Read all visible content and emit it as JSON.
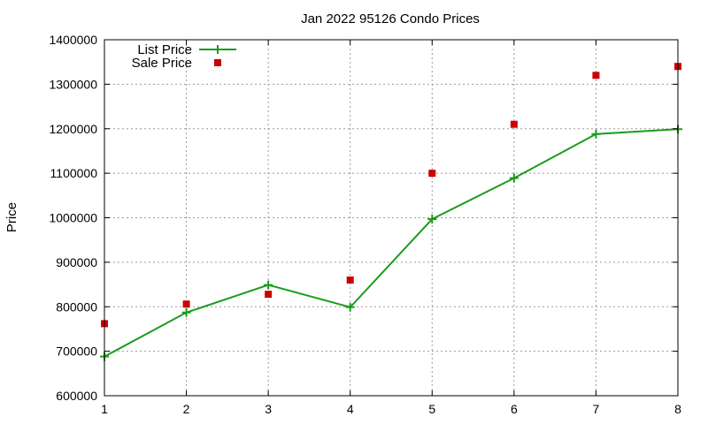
{
  "chart_data": {
    "type": "line",
    "title": "Jan 2022 95126 Condo Prices",
    "xlabel": "",
    "ylabel": "Price",
    "x": [
      1,
      2,
      3,
      4,
      5,
      6,
      7,
      8
    ],
    "xlim": [
      1,
      8
    ],
    "ylim": [
      600000,
      1400000
    ],
    "xticks": [
      1,
      2,
      3,
      4,
      5,
      6,
      7,
      8
    ],
    "yticks": [
      600000,
      700000,
      800000,
      900000,
      1000000,
      1100000,
      1200000,
      1300000,
      1400000
    ],
    "grid": true,
    "legend_position": "top-left",
    "series": [
      {
        "name": "List Price",
        "style": "linespoints",
        "marker": "plus",
        "color": "#1a9c1a",
        "values": [
          688000,
          787000,
          849000,
          799000,
          997000,
          1089000,
          1188000,
          1199000
        ]
      },
      {
        "name": "Sale Price",
        "style": "points",
        "marker": "square",
        "color": "#cc0000",
        "values": [
          762000,
          806000,
          828000,
          860000,
          1100000,
          1210000,
          1320000,
          1340000
        ]
      }
    ]
  }
}
